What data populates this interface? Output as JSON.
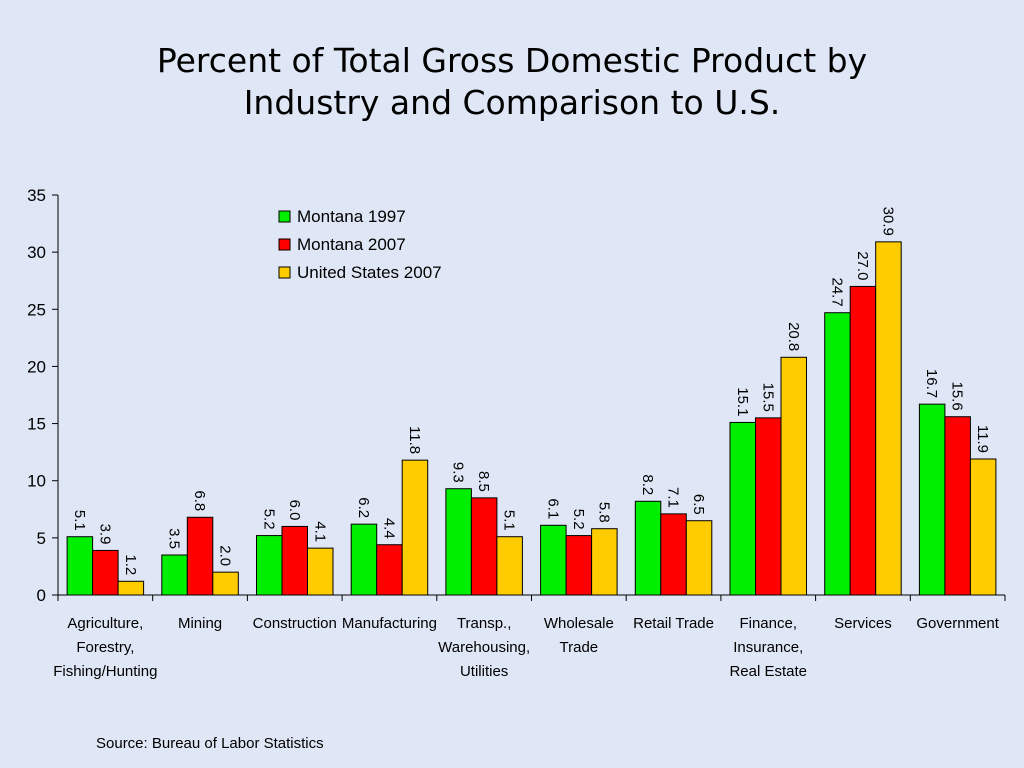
{
  "chart_data": {
    "type": "bar",
    "title": [
      "Percent of Total Gross Domestic Product by",
      "Industry and Comparison to U.S."
    ],
    "categories": [
      [
        "Agriculture,",
        "Forestry,",
        "Fishing/Hunting"
      ],
      [
        "Mining"
      ],
      [
        "Construction"
      ],
      [
        "Manufacturing"
      ],
      [
        "Transp.,",
        "Warehousing,",
        "Utilities"
      ],
      [
        "Wholesale",
        "Trade"
      ],
      [
        "Retail Trade"
      ],
      [
        "Finance,",
        "Insurance,",
        "Real Estate"
      ],
      [
        "Services"
      ],
      [
        "Government"
      ]
    ],
    "series": [
      {
        "name": "Montana 1997",
        "color": "#00ee00",
        "values": [
          5.1,
          3.5,
          5.2,
          6.2,
          9.3,
          6.1,
          8.2,
          15.1,
          24.7,
          16.7
        ]
      },
      {
        "name": "Montana 2007",
        "color": "#ff0000",
        "values": [
          3.9,
          6.8,
          6.0,
          4.4,
          8.5,
          5.2,
          7.1,
          15.5,
          27.0,
          15.6
        ]
      },
      {
        "name": "United States 2007",
        "color": "#ffcc00",
        "values": [
          1.2,
          2.0,
          4.1,
          11.8,
          5.1,
          5.8,
          6.5,
          20.8,
          30.9,
          11.9
        ]
      }
    ],
    "ylim": [
      0,
      35
    ],
    "yticks": [
      0,
      5,
      10,
      15,
      20,
      25,
      30,
      35
    ],
    "grid": false,
    "legend": "top-center",
    "data_labels": "rotated-vertical"
  },
  "source": "Source:  Bureau of Labor Statistics"
}
